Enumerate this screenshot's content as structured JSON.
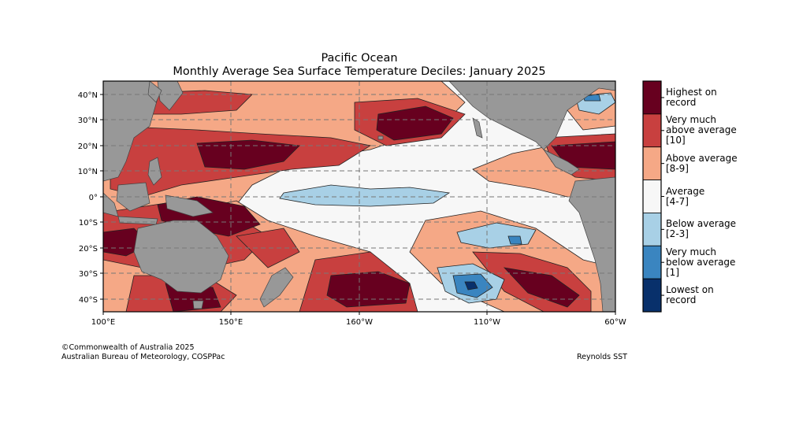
{
  "title": {
    "line1": "Pacific Ocean",
    "line2": "Monthly Average Sea Surface Temperature Deciles: January 2025"
  },
  "axes": {
    "lat_labels": [
      "40°N",
      "30°N",
      "20°N",
      "10°N",
      "0°",
      "10°S",
      "20°S",
      "30°S",
      "40°S"
    ],
    "lon_labels": [
      "100°E",
      "150°E",
      "160°W",
      "110°W",
      "60°W"
    ]
  },
  "legend": [
    {
      "lines": [
        "Highest on",
        "record"
      ],
      "color": "#67001f"
    },
    {
      "lines": [
        "Very much",
        "above average",
        "[10]"
      ],
      "color": "#c8403f"
    },
    {
      "lines": [
        "Above average",
        "[8-9]"
      ],
      "color": "#f5a886"
    },
    {
      "lines": [
        "Average",
        "[4-7]"
      ],
      "color": "#f7f7f7"
    },
    {
      "lines": [
        "Below average",
        "[2-3]"
      ],
      "color": "#a8d0e6"
    },
    {
      "lines": [
        "Very much",
        "below average",
        "[1]"
      ],
      "color": "#3a85c0"
    },
    {
      "lines": [
        "Lowest on",
        "record"
      ],
      "color": "#08306b"
    }
  ],
  "colors": {
    "land": "#989898",
    "grid": "#777777"
  },
  "credits": {
    "line1": "©Commonwealth of Australia 2025",
    "line2": "Australian Bureau of Meteorology, COSPPac",
    "source": "Reynolds SST"
  }
}
